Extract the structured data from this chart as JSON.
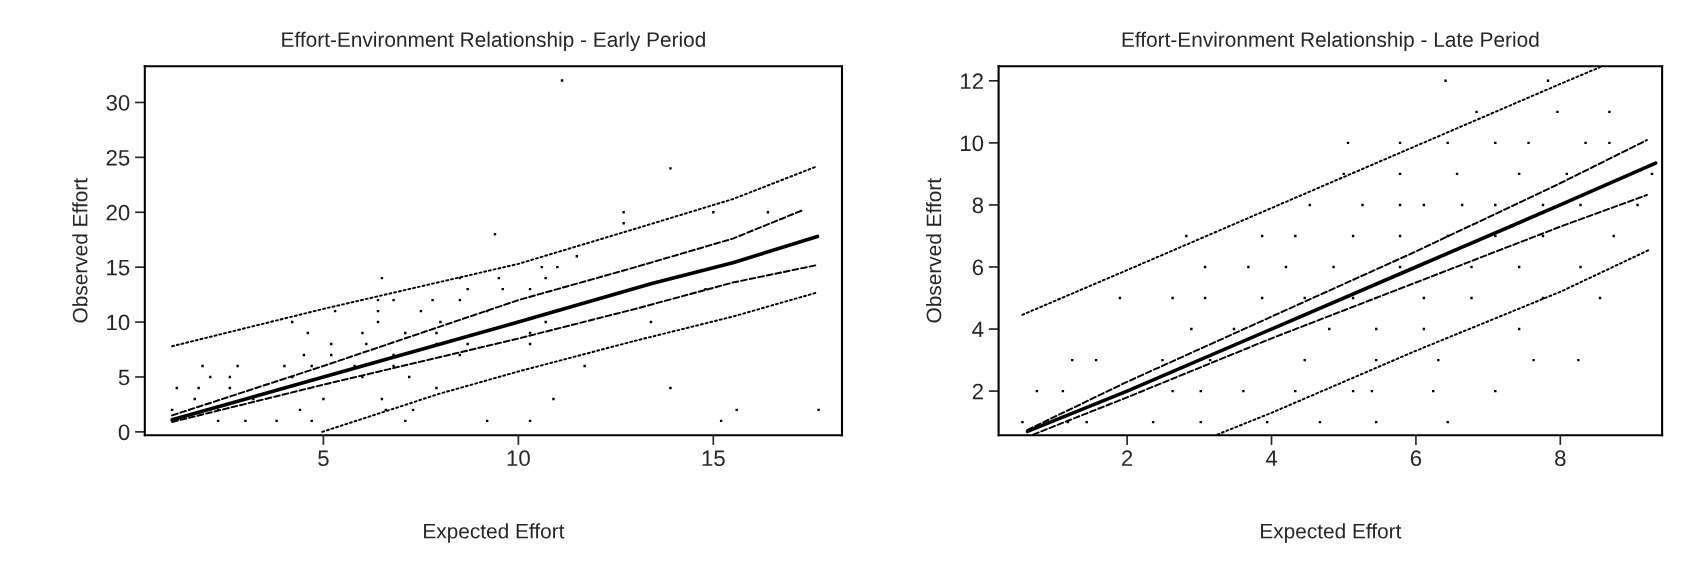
{
  "chart_data": [
    {
      "type": "scatter",
      "title": "Effort-Environment Relationship - Early Period",
      "xlabel": "Expected Effort",
      "ylabel": "Observed Effort",
      "xlim": [
        0.42,
        18.3
      ],
      "ylim": [
        -0.3,
        33.3
      ],
      "xticks": [
        5,
        10,
        15
      ],
      "yticks": [
        0,
        5,
        10,
        15,
        20,
        25,
        30
      ],
      "grid": false,
      "legend": false,
      "series": [
        {
          "marker": "square",
          "color": "#000000",
          "x": [
            11.12,
            13.9,
            12.7,
            15.0,
            16.4,
            12.7,
            9.4,
            11.5,
            10.6,
            11.0,
            9.5,
            10.7,
            8.5,
            6.5,
            8.7,
            9.6,
            10.3,
            14.8,
            7.8,
            8.5,
            6.4,
            6.8,
            5.3,
            6.4,
            7.5,
            9.2,
            4.2,
            6.4,
            8.0,
            10.7,
            13.4,
            4.6,
            6.0,
            7.1,
            7.9,
            10.3,
            5.2,
            6.1,
            7.9,
            8.7,
            10.3,
            4.5,
            5.2,
            6.8,
            8.5,
            1.9,
            2.8,
            4.0,
            4.7,
            5.8,
            6.8,
            11.7,
            2.1,
            2.6,
            4.2,
            6.0,
            7.2,
            1.24,
            1.8,
            2.6,
            4.0,
            7.9,
            13.9,
            1.7,
            3.2,
            5.0,
            6.5,
            10.9,
            1.12,
            2.3,
            4.4,
            6.6,
            7.3,
            15.6,
            17.7,
            2.3,
            3.0,
            3.8,
            4.7,
            7.1,
            9.2,
            10.3,
            15.2
          ],
          "values": [
            32,
            24,
            20,
            20,
            20,
            19,
            18,
            16,
            15,
            15,
            14,
            14,
            14,
            14,
            13,
            13,
            13,
            13,
            12,
            12,
            12,
            12,
            11,
            11,
            11,
            11,
            10,
            10,
            10,
            10,
            10,
            9,
            9,
            9,
            9,
            9,
            8,
            8,
            8,
            8,
            8,
            7,
            7,
            7,
            7,
            6,
            6,
            6,
            6,
            6,
            6,
            6,
            5,
            5,
            5,
            5,
            5,
            4,
            4,
            4,
            4,
            4,
            4,
            3,
            3,
            3,
            3,
            3,
            2,
            2,
            2,
            2,
            2,
            2,
            2,
            1,
            1,
            1,
            1,
            1,
            1,
            1,
            1
          ]
        },
        {
          "type": "line",
          "line_style": "solid",
          "color": "#000000",
          "x": [
            1.12,
            5,
            10,
            13.4,
            15.5,
            17.67
          ],
          "values": [
            1.1,
            5.0,
            10.0,
            13.5,
            15.4,
            17.8
          ]
        },
        {
          "type": "line",
          "line_style": "dashed",
          "color": "#000000",
          "x": [
            1.12,
            5,
            10,
            13,
            15.5,
            17.3
          ],
          "values": [
            1.5,
            6.0,
            12.0,
            15.0,
            17.6,
            20.2
          ]
        },
        {
          "type": "line",
          "line_style": "dashed",
          "color": "#000000",
          "x": [
            1.12,
            5,
            10,
            13,
            15.5,
            17.67
          ],
          "values": [
            0.9,
            4.3,
            8.5,
            11.2,
            13.6,
            15.2
          ]
        },
        {
          "type": "line",
          "line_style": "dotted",
          "color": "#000000",
          "x": [
            1.12,
            5,
            10,
            13,
            15.5,
            17.67
          ],
          "values": [
            7.8,
            11.2,
            15.3,
            18.5,
            21.2,
            24.2
          ]
        },
        {
          "type": "line",
          "line_style": "dotted",
          "color": "#000000",
          "x": [
            4.97,
            8,
            10,
            13,
            15.5,
            17.67
          ],
          "values": [
            0,
            3.5,
            5.5,
            8.3,
            10.5,
            12.7
          ]
        }
      ]
    },
    {
      "type": "scatter",
      "title": "Effort-Environment Relationship - Late Period",
      "xlabel": "Expected Effort",
      "ylabel": "Observed Effort",
      "xlim": [
        0.22,
        9.41
      ],
      "ylim": [
        0.58,
        12.47
      ],
      "xticks": [
        2,
        4,
        6,
        8
      ],
      "yticks": [
        2,
        4,
        6,
        8,
        10,
        12
      ],
      "grid": false,
      "legend": false,
      "series": [
        {
          "marker": "square",
          "color": "#000000",
          "x": [
            6.41,
            7.83,
            6.84,
            7.96,
            8.68,
            5.06,
            5.78,
            6.44,
            7.1,
            7.56,
            8.35,
            8.68,
            5.0,
            5.78,
            6.57,
            7.43,
            8.09,
            9.27,
            4.53,
            5.26,
            5.78,
            6.11,
            6.64,
            7.1,
            7.76,
            8.28,
            9.07,
            2.82,
            3.87,
            4.33,
            5.13,
            5.78,
            6.44,
            7.1,
            7.76,
            8.74,
            3.08,
            3.68,
            4.2,
            4.86,
            5.78,
            6.77,
            7.43,
            8.28,
            1.9,
            2.63,
            3.08,
            3.87,
            4.46,
            5.13,
            6.11,
            6.77,
            7.76,
            8.55,
            2.89,
            3.48,
            4.8,
            5.45,
            6.11,
            7.43,
            1.24,
            1.57,
            2.49,
            3.15,
            4.46,
            5.45,
            6.31,
            7.63,
            8.25,
            0.75,
            1.11,
            2.63,
            3.02,
            3.61,
            4.33,
            5.13,
            5.39,
            6.24,
            7.1,
            0.55,
            1.18,
            1.44,
            2.36,
            3.02,
            3.94,
            4.67,
            5.45,
            6.44
          ],
          "values": [
            12,
            12,
            11,
            11,
            11,
            10,
            10,
            10,
            10,
            10,
            10,
            10,
            9,
            9,
            9,
            9,
            9,
            9,
            8,
            8,
            8,
            8,
            8,
            8,
            8,
            8,
            8,
            7,
            7,
            7,
            7,
            7,
            7,
            7,
            7,
            7,
            6,
            6,
            6,
            6,
            6,
            6,
            6,
            6,
            5,
            5,
            5,
            5,
            5,
            5,
            5,
            5,
            5,
            5,
            4,
            4,
            4,
            4,
            4,
            4,
            3,
            3,
            3,
            3,
            3,
            3,
            3,
            3,
            3,
            2,
            2,
            2,
            2,
            2,
            2,
            2,
            2,
            2,
            2,
            1,
            1,
            1,
            1,
            1,
            1,
            1,
            1,
            1
          ]
        },
        {
          "type": "line",
          "line_style": "solid",
          "color": "#000000",
          "x": [
            0.62,
            2,
            4,
            6,
            8,
            9.32
          ],
          "values": [
            0.7,
            2.0,
            4.0,
            6.0,
            8.0,
            9.35
          ]
        },
        {
          "type": "line",
          "line_style": "dashed",
          "color": "#000000",
          "x": [
            0.62,
            2,
            4,
            6,
            8,
            9.2
          ],
          "values": [
            0.75,
            2.3,
            4.4,
            6.5,
            8.7,
            10.09
          ]
        },
        {
          "type": "line",
          "line_style": "dashed",
          "color": "#000000",
          "x": [
            0.7,
            2,
            4,
            6,
            8,
            9.2
          ],
          "values": [
            0.6,
            1.8,
            3.7,
            5.5,
            7.3,
            8.32
          ]
        },
        {
          "type": "line",
          "line_style": "dotted",
          "color": "#000000",
          "x": [
            0.55,
            2,
            4,
            6,
            8,
            8.55
          ],
          "values": [
            4.46,
            5.9,
            7.9,
            9.9,
            11.9,
            12.44
          ]
        },
        {
          "type": "line",
          "line_style": "dotted",
          "color": "#000000",
          "x": [
            3.25,
            4,
            6,
            8,
            9.22
          ],
          "values": [
            0.6,
            1.3,
            3.3,
            5.2,
            6.54
          ]
        }
      ]
    }
  ]
}
